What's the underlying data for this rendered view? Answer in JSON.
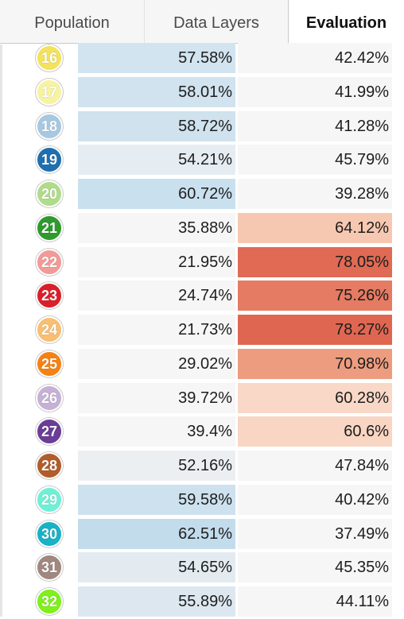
{
  "tabs": [
    {
      "label": "Population"
    },
    {
      "label": "Data Layers"
    },
    {
      "label": "Evaluation"
    }
  ],
  "active_tab": "Evaluation",
  "rows": [
    {
      "id": "16",
      "badge_color": "#f2e25c",
      "data_layers": "57.58%",
      "evaluation": "42.42%",
      "dl_bg": "#d2e4ef",
      "ev_bg": "#f6f6f6"
    },
    {
      "id": "17",
      "badge_color": "#f7f3a0",
      "data_layers": "58.01%",
      "evaluation": "41.99%",
      "dl_bg": "#d0e3ee",
      "ev_bg": "#f6f6f6"
    },
    {
      "id": "18",
      "badge_color": "#a6c8e0",
      "data_layers": "58.72%",
      "evaluation": "41.28%",
      "dl_bg": "#cfe2ee",
      "ev_bg": "#f6f6f6"
    },
    {
      "id": "19",
      "badge_color": "#1f6fb0",
      "data_layers": "54.21%",
      "evaluation": "45.79%",
      "dl_bg": "#e6edf2",
      "ev_bg": "#f6f6f6"
    },
    {
      "id": "20",
      "badge_color": "#b0dc8a",
      "data_layers": "60.72%",
      "evaluation": "39.28%",
      "dl_bg": "#c9e0ee",
      "ev_bg": "#f6f6f6"
    },
    {
      "id": "21",
      "badge_color": "#2e9a2e",
      "data_layers": "35.88%",
      "evaluation": "64.12%",
      "dl_bg": "#f6f6f6",
      "ev_bg": "#f7c8b1"
    },
    {
      "id": "22",
      "badge_color": "#f29a98",
      "data_layers": "21.95%",
      "evaluation": "78.05%",
      "dl_bg": "#f6f6f6",
      "ev_bg": "#e06a54"
    },
    {
      "id": "23",
      "badge_color": "#d9202a",
      "data_layers": "24.74%",
      "evaluation": "75.26%",
      "dl_bg": "#f6f6f6",
      "ev_bg": "#e57b63"
    },
    {
      "id": "24",
      "badge_color": "#f8be72",
      "data_layers": "21.73%",
      "evaluation": "78.27%",
      "dl_bg": "#f6f6f6",
      "ev_bg": "#df6752"
    },
    {
      "id": "25",
      "badge_color": "#f58214",
      "data_layers": "29.02%",
      "evaluation": "70.98%",
      "dl_bg": "#f6f6f6",
      "ev_bg": "#ed9c80"
    },
    {
      "id": "26",
      "badge_color": "#c6b1d6",
      "data_layers": "39.72%",
      "evaluation": "60.28%",
      "dl_bg": "#f6f6f6",
      "ev_bg": "#f9d8c8"
    },
    {
      "id": "27",
      "badge_color": "#6a3d96",
      "data_layers": "39.4%",
      "evaluation": "60.6%",
      "dl_bg": "#f6f6f6",
      "ev_bg": "#f9d5c3"
    },
    {
      "id": "28",
      "badge_color": "#b15d2b",
      "data_layers": "52.16%",
      "evaluation": "47.84%",
      "dl_bg": "#eceff2",
      "ev_bg": "#f6f6f6"
    },
    {
      "id": "29",
      "badge_color": "#6ef0d6",
      "data_layers": "59.58%",
      "evaluation": "40.42%",
      "dl_bg": "#cde1ee",
      "ev_bg": "#f6f6f6"
    },
    {
      "id": "30",
      "badge_color": "#18b2c6",
      "data_layers": "62.51%",
      "evaluation": "37.49%",
      "dl_bg": "#c3dcec",
      "ev_bg": "#f6f6f6"
    },
    {
      "id": "31",
      "badge_color": "#a08780",
      "data_layers": "54.65%",
      "evaluation": "45.35%",
      "dl_bg": "#e3ebf1",
      "ev_bg": "#f6f6f6"
    },
    {
      "id": "32",
      "badge_color": "#7ef01a",
      "data_layers": "55.89%",
      "evaluation": "44.11%",
      "dl_bg": "#dde7ef",
      "ev_bg": "#f6f6f6"
    }
  ]
}
